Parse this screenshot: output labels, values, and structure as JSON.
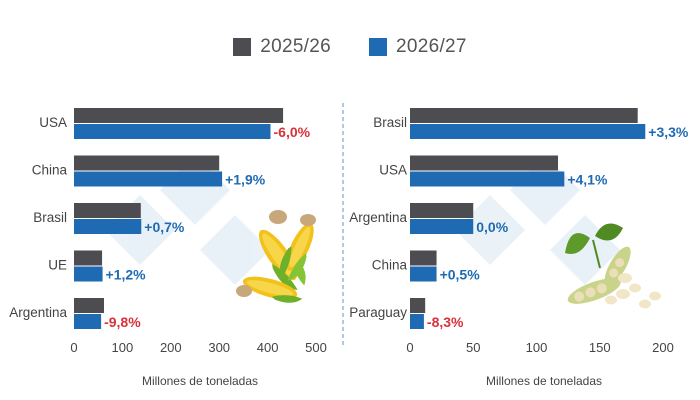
{
  "colors": {
    "series_2025": "#4d4d51",
    "series_2026": "#1e6bb3",
    "positive_label": "#1e6bb3",
    "negative_label": "#d9303a",
    "axis_text": "#444444",
    "divider": "#7aa6d6"
  },
  "legend": {
    "items": [
      {
        "label": "2025/26",
        "color": "#4d4d51"
      },
      {
        "label": "2026/27",
        "color": "#1e6bb3"
      }
    ]
  },
  "chart_data": [
    {
      "type": "bar",
      "orientation": "horizontal",
      "categories": [
        "USA",
        "China",
        "Brasil",
        "UE",
        "Argentina"
      ],
      "series": [
        {
          "name": "2025/26",
          "values": [
            432,
            300,
            138,
            58,
            62
          ]
        },
        {
          "name": "2026/27",
          "values": [
            406,
            306,
            139,
            59,
            56
          ]
        }
      ],
      "data_labels": [
        "-6,0%",
        "+1,9%",
        "+0,7%",
        "+1,2%",
        "-9,8%"
      ],
      "xlabel": "Millones de toneladas",
      "xlim": [
        0,
        500
      ],
      "xticks": [
        0,
        100,
        200,
        300,
        400,
        500
      ],
      "grid": false,
      "decoration": "corn-icon"
    },
    {
      "type": "bar",
      "orientation": "horizontal",
      "categories": [
        "Brasil",
        "USA",
        "Argentina",
        "China",
        "Paraguay"
      ],
      "series": [
        {
          "name": "2025/26",
          "values": [
            180,
            117,
            50,
            21,
            12
          ]
        },
        {
          "name": "2026/27",
          "values": [
            186,
            122,
            50,
            21,
            11
          ]
        }
      ],
      "data_labels": [
        "+3,3%",
        "+4,1%",
        "0,0%",
        "+0,5%",
        "-8,3%"
      ],
      "xlabel": "Millones de toneladas",
      "xlim": [
        0,
        200
      ],
      "xticks": [
        0,
        50,
        100,
        150,
        200
      ],
      "grid": false,
      "decoration": "soybean-icon"
    }
  ]
}
